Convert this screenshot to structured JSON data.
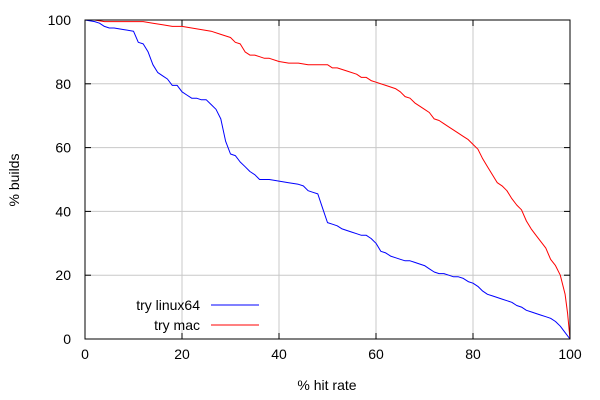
{
  "chart_data": {
    "type": "line",
    "title": "",
    "xlabel": "% hit rate",
    "ylabel": "% builds",
    "xlim": [
      0,
      100
    ],
    "ylim": [
      0,
      100
    ],
    "x_ticks": [
      0,
      20,
      40,
      60,
      80,
      100
    ],
    "y_ticks": [
      0,
      20,
      40,
      60,
      80,
      100
    ],
    "grid": true,
    "legend_position": "bottom-left",
    "series": [
      {
        "name": "try linux64",
        "color": "#0000ff",
        "x": [
          0,
          2,
          3,
          4,
          5,
          6,
          8,
          10,
          11,
          12,
          13,
          14,
          15,
          16,
          17,
          18,
          19,
          20,
          21,
          22,
          23,
          24,
          25,
          26,
          27,
          28,
          29,
          30,
          31,
          32,
          33,
          34,
          35,
          36,
          37,
          38,
          40,
          42,
          44,
          45,
          46,
          47,
          48,
          49,
          50,
          51,
          52,
          53,
          54,
          55,
          56,
          57,
          58,
          59,
          60,
          61,
          62,
          63,
          64,
          65,
          66,
          67,
          68,
          69,
          70,
          71,
          72,
          73,
          74,
          75,
          76,
          77,
          78,
          79,
          80,
          81,
          82,
          83,
          84,
          85,
          86,
          87,
          88,
          89,
          90,
          91,
          92,
          93,
          94,
          95,
          96,
          97,
          98,
          99,
          100
        ],
        "y": [
          100,
          99.5,
          99,
          98,
          97.5,
          97.5,
          97,
          96.5,
          93,
          92.5,
          90,
          86,
          83.5,
          82.5,
          81.5,
          79.5,
          79.5,
          77.5,
          76.5,
          75.5,
          75.5,
          75,
          75,
          73.5,
          72,
          69,
          62,
          58,
          57.5,
          55.5,
          54,
          52.5,
          51.5,
          50,
          50,
          50,
          49.5,
          49,
          48.5,
          48,
          46.5,
          46,
          45.5,
          41,
          36.5,
          36,
          35.5,
          34.5,
          34,
          33.5,
          33,
          32.5,
          32.5,
          31.5,
          30,
          27.5,
          27,
          26,
          25.5,
          25,
          24.5,
          24.5,
          24,
          23.5,
          23,
          22,
          21,
          20.5,
          20.5,
          20,
          19.5,
          19.5,
          19,
          18,
          17.5,
          16.5,
          15,
          14,
          13.5,
          13,
          12.5,
          12,
          11.5,
          10.5,
          10,
          9,
          8.5,
          8,
          7.5,
          7,
          6.5,
          5.5,
          4,
          2,
          0
        ]
      },
      {
        "name": "try mac",
        "color": "#ff0000",
        "x": [
          0,
          2,
          4,
          6,
          8,
          10,
          12,
          14,
          16,
          18,
          20,
          22,
          24,
          26,
          28,
          30,
          31,
          32,
          33,
          34,
          35,
          36,
          37,
          38,
          40,
          42,
          44,
          46,
          48,
          50,
          51,
          52,
          54,
          56,
          57,
          58,
          59,
          60,
          62,
          63,
          64,
          65,
          66,
          67,
          68,
          70,
          71,
          72,
          73,
          74,
          75,
          76,
          77,
          78,
          79,
          80,
          81,
          82,
          83,
          84,
          85,
          86,
          87,
          88,
          89,
          90,
          91,
          92,
          93,
          94,
          95,
          96,
          97,
          98,
          99,
          99.5,
          100
        ],
        "y": [
          100,
          100,
          99.5,
          99.5,
          99.5,
          99.5,
          99.5,
          99,
          98.5,
          98,
          98,
          97.5,
          97,
          96.5,
          95.5,
          94.5,
          93,
          92.5,
          90,
          89,
          89,
          88.5,
          88,
          88,
          87,
          86.5,
          86.5,
          86,
          86,
          86,
          85,
          85,
          84,
          83,
          82,
          82,
          81,
          80.5,
          79.5,
          79,
          78.5,
          77.5,
          76,
          75.5,
          74,
          72,
          71,
          69,
          68.5,
          67.5,
          66.5,
          65.5,
          64.5,
          63.5,
          62.5,
          61,
          59.5,
          56.5,
          54,
          51.5,
          49,
          48,
          46.5,
          44,
          42,
          40.5,
          37,
          34.5,
          32.5,
          30.5,
          28.5,
          25,
          23,
          20,
          14,
          8,
          0
        ]
      }
    ]
  }
}
